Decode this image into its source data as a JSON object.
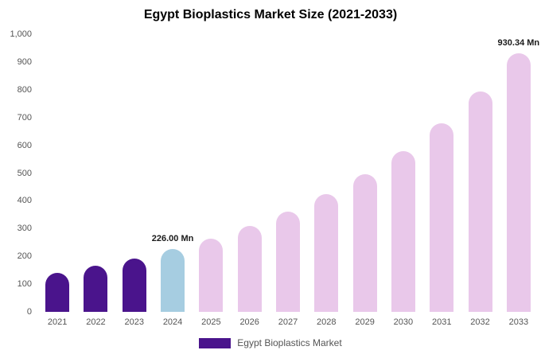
{
  "title": "Egypt Bioplastics Market Size (2021-2033)",
  "legend": {
    "label": "Egypt Bioplastics Market",
    "color": "#4a148c"
  },
  "chart_data": {
    "type": "bar",
    "title": "Egypt Bioplastics Market Size (2021-2033)",
    "categories": [
      "2021",
      "2022",
      "2023",
      "2024",
      "2025",
      "2026",
      "2027",
      "2028",
      "2029",
      "2030",
      "2031",
      "2032",
      "2033"
    ],
    "values": [
      141,
      165,
      193,
      226,
      264,
      309,
      362,
      423,
      495,
      579,
      678,
      793,
      930.34
    ],
    "bar_colors": [
      "#4a148c",
      "#4a148c",
      "#4a148c",
      "#a6cde1",
      "#e9c8ea",
      "#e9c8ea",
      "#e9c8ea",
      "#e9c8ea",
      "#e9c8ea",
      "#e9c8ea",
      "#e9c8ea",
      "#e9c8ea",
      "#e9c8ea"
    ],
    "annotations": [
      {
        "category": "2024",
        "text": "226.00 Mn"
      },
      {
        "category": "2033",
        "text": "930.34 Mn"
      }
    ],
    "ylim": [
      0,
      1000
    ],
    "yticks": [
      {
        "label": "0",
        "value": 0
      },
      {
        "label": "100",
        "value": 100
      },
      {
        "label": "200",
        "value": 200
      },
      {
        "label": "300",
        "value": 300
      },
      {
        "label": "400",
        "value": 400
      },
      {
        "label": "500",
        "value": 500
      },
      {
        "label": "600",
        "value": 600
      },
      {
        "label": "700",
        "value": 700
      },
      {
        "label": "800",
        "value": 800
      },
      {
        "label": "900",
        "value": 900
      },
      {
        "label": "1,000",
        "value": 1000
      }
    ],
    "xlabel": "",
    "ylabel": "",
    "grid": false,
    "legend_position": "bottom",
    "legend_entries": [
      "Egypt Bioplastics Market"
    ]
  }
}
